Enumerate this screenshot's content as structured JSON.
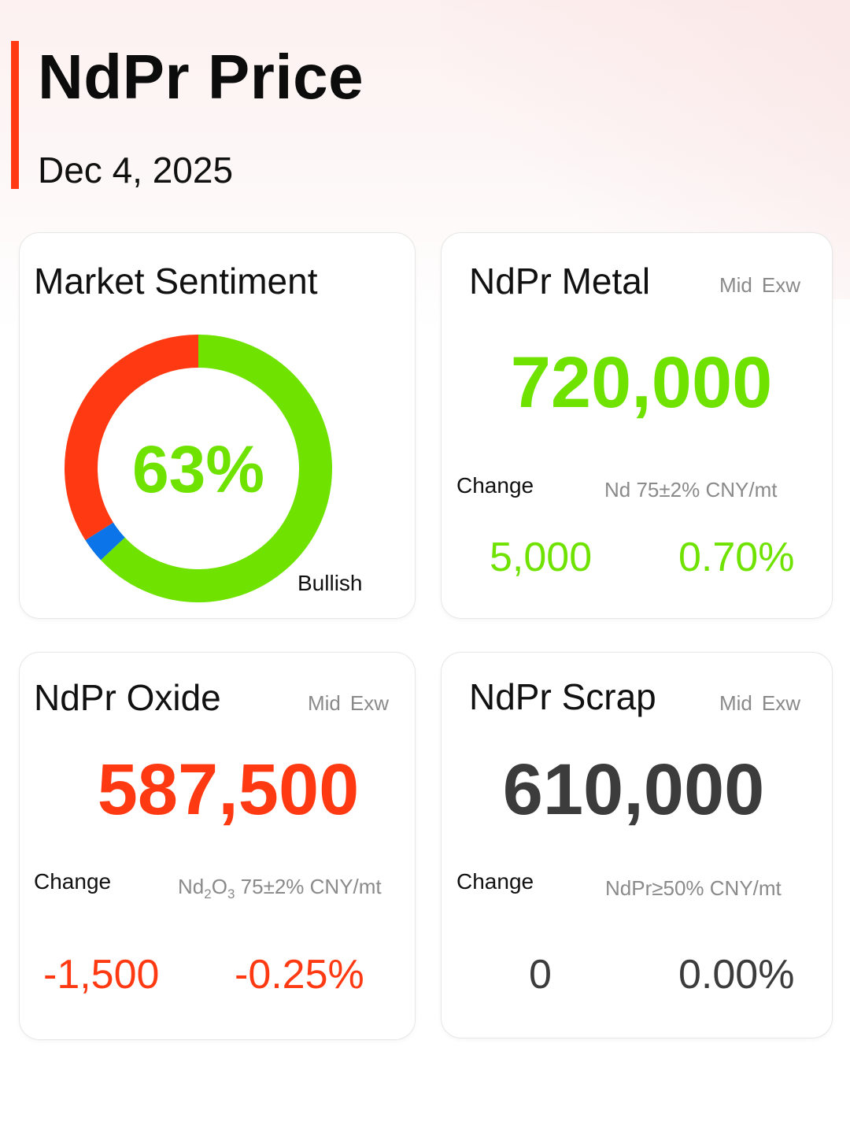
{
  "header": {
    "title": "NdPr Price",
    "date": "Dec 4, 2025"
  },
  "sentiment": {
    "title": "Market Sentiment",
    "percent_label": "63%",
    "label": "Bullish",
    "segments": [
      {
        "name": "bullish",
        "value": 63,
        "color": "#6fe200"
      },
      {
        "name": "neutral",
        "value": 3,
        "color": "#0a74e8"
      },
      {
        "name": "bearish",
        "value": 34,
        "color": "#ff3a12"
      }
    ]
  },
  "cards": {
    "metal": {
      "title": "NdPr Metal",
      "meta_mid": "Mid",
      "meta_exw": "Exw",
      "price": "720,000",
      "change_label": "Change",
      "spec_html": "Nd 75±2% CNY/mt",
      "change_abs": "5,000",
      "change_pct": "0.70%",
      "color": "#6fe200"
    },
    "oxide": {
      "title": "NdPr Oxide",
      "meta_mid": "Mid",
      "meta_exw": "Exw",
      "price": "587,500",
      "change_label": "Change",
      "spec_prefix": "Nd",
      "spec_sub1": "2",
      "spec_mid": "O",
      "spec_sub2": "3",
      "spec_suffix": " 75±2% CNY/mt",
      "change_abs": "-1,500",
      "change_pct": "-0.25%",
      "color": "#ff3a12"
    },
    "scrap": {
      "title": "NdPr Scrap",
      "meta_mid": "Mid",
      "meta_exw": "Exw",
      "price": "610,000",
      "change_label": "Change",
      "spec_html": "NdPr≥50% CNY/mt",
      "change_abs": "0",
      "change_pct": "0.00%",
      "color": "#3c3c3c"
    }
  }
}
